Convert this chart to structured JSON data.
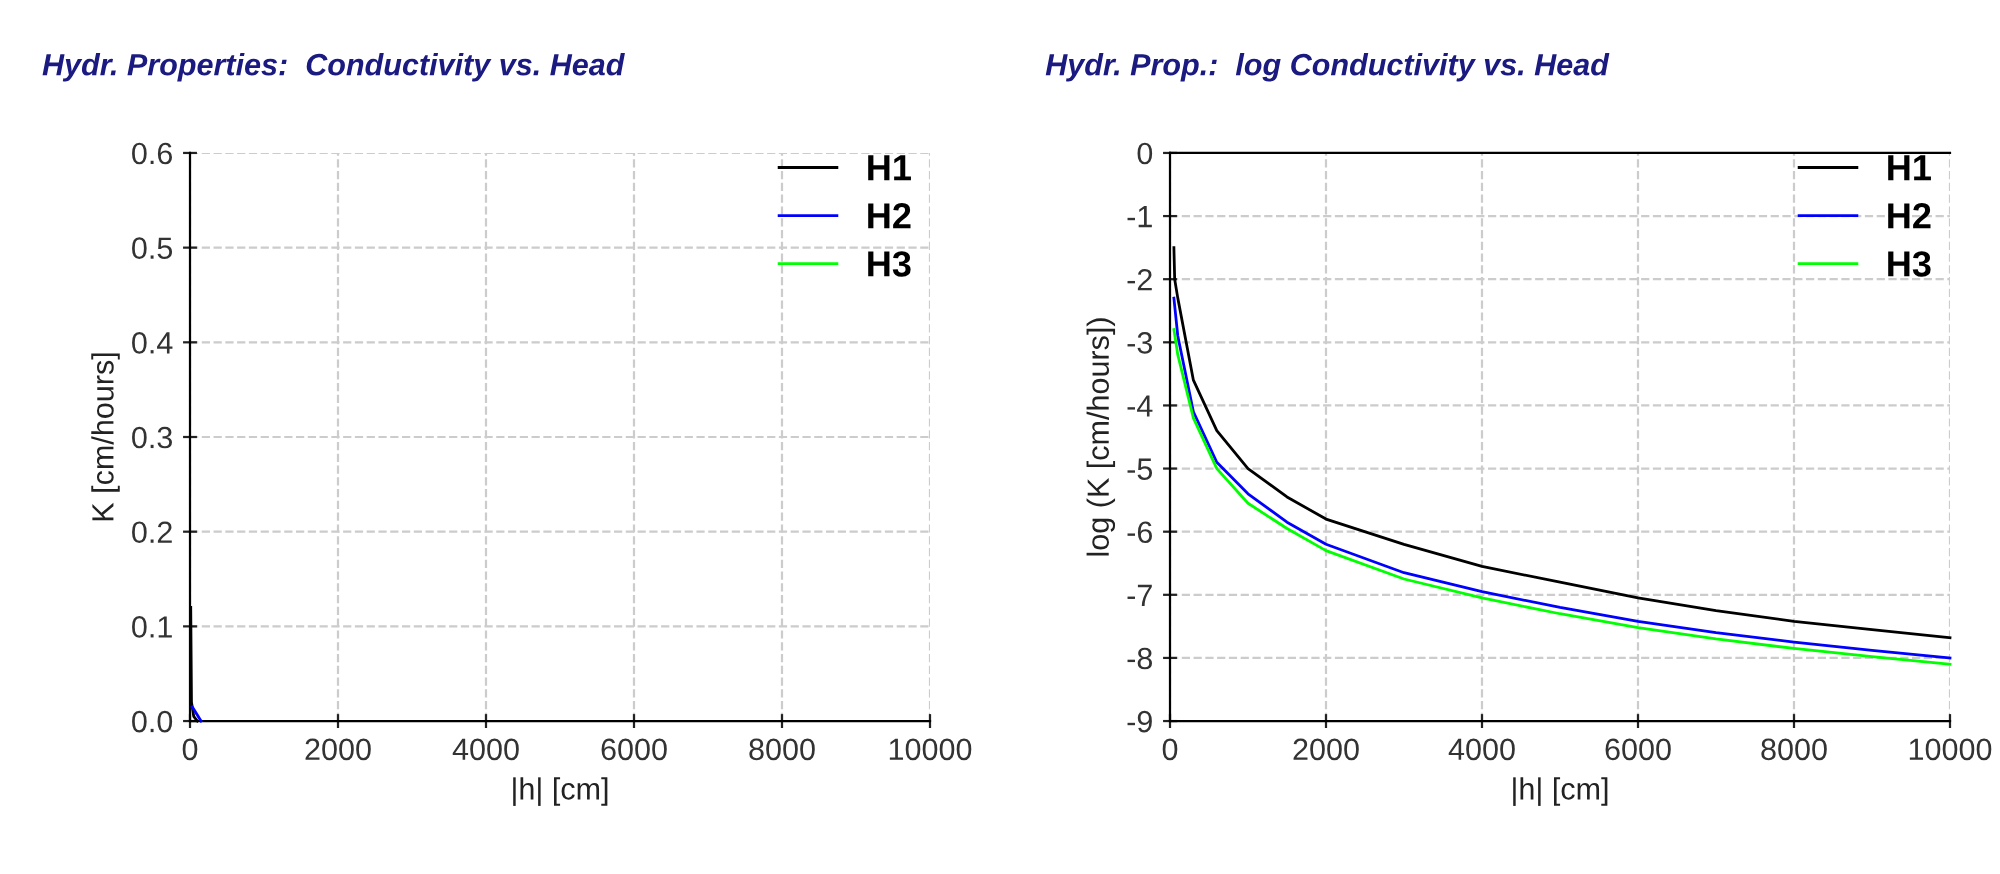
{
  "chart_data": [
    {
      "type": "line",
      "title": "Hydr. Properties:  Conductivity vs. Head",
      "xlabel": "|h| [cm]",
      "ylabel": "K [cm/hours]",
      "xlim": [
        0,
        10000
      ],
      "xticks": [
        0,
        2000,
        4000,
        6000,
        8000,
        10000
      ],
      "ylim": [
        0,
        0.6
      ],
      "yticks": [
        {
          "value": 0,
          "label": "0.0"
        },
        0.1,
        0.2,
        0.3,
        0.4,
        0.5,
        0.6
      ],
      "grid": true,
      "legend": "top right",
      "series": [
        {
          "name": "H1",
          "color": "#000000",
          "x": [
            10,
            20,
            50,
            100
          ],
          "values": [
            0.12,
            0.02,
            0.005,
            0
          ]
        },
        {
          "name": "H2",
          "color": "#0000ff",
          "x": [
            30,
            150
          ],
          "values": [
            0.015,
            0
          ]
        },
        {
          "name": "H3",
          "color": "#00ff00"
        }
      ]
    },
    {
      "type": "line",
      "title": "Hydr. Prop.:  log Conductivity vs. Head",
      "xlabel": "|h| [cm]",
      "ylabel": "log (K [cm/hours])",
      "xlim": [
        0,
        10000
      ],
      "xticks": [
        0,
        2000,
        4000,
        6000,
        8000,
        10000
      ],
      "ylim": [
        -9,
        0
      ],
      "yticks": [
        -9,
        -8,
        -7,
        -6,
        -5,
        -4,
        -3,
        -2,
        -1,
        0
      ],
      "grid": true,
      "legend": "top right",
      "series": [
        {
          "name": "H1",
          "color": "#000000",
          "x": [
            50,
            60,
            100,
            300,
            600,
            1000,
            1500,
            2000,
            3000,
            4000,
            5000,
            6000,
            7000,
            8000,
            9000,
            10000
          ],
          "values": [
            -1.5,
            -2.0,
            -2.3,
            -3.6,
            -4.4,
            -5.0,
            -5.45,
            -5.8,
            -6.2,
            -6.55,
            -6.8,
            -7.05,
            -7.25,
            -7.42,
            -7.55,
            -7.68
          ]
        },
        {
          "name": "H2",
          "color": "#0000ff",
          "x": [
            50,
            100,
            300,
            600,
            1000,
            1500,
            2000,
            3000,
            4000,
            5000,
            6000,
            7000,
            8000,
            9000,
            10000
          ],
          "values": [
            -2.3,
            -2.9,
            -4.1,
            -4.9,
            -5.4,
            -5.85,
            -6.2,
            -6.65,
            -6.95,
            -7.2,
            -7.42,
            -7.6,
            -7.75,
            -7.88,
            -8.0
          ]
        },
        {
          "name": "H3",
          "color": "#00ff00",
          "x": [
            50,
            100,
            300,
            600,
            1000,
            1500,
            2000,
            3000,
            4000,
            5000,
            6000,
            7000,
            8000,
            9000,
            10000
          ],
          "values": [
            -2.8,
            -3.2,
            -4.2,
            -5.0,
            -5.55,
            -5.95,
            -6.3,
            -6.75,
            -7.05,
            -7.3,
            -7.52,
            -7.7,
            -7.85,
            -7.98,
            -8.1
          ]
        }
      ]
    }
  ]
}
